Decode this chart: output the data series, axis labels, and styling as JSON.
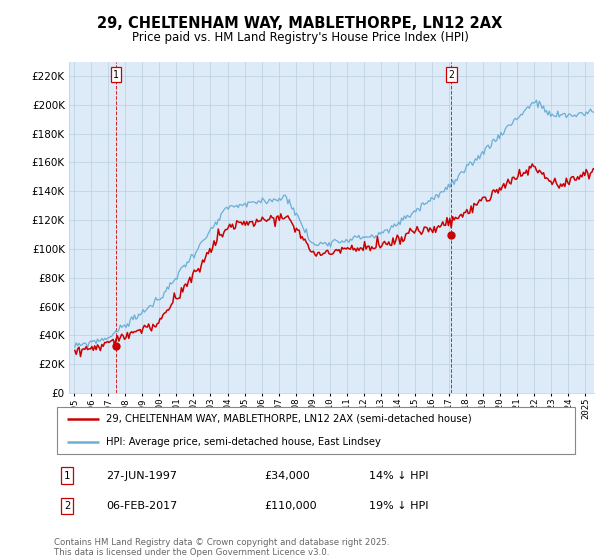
{
  "title": "29, CHELTENHAM WAY, MABLETHORPE, LN12 2AX",
  "subtitle": "Price paid vs. HM Land Registry's House Price Index (HPI)",
  "legend_entry1": "29, CHELTENHAM WAY, MABLETHORPE, LN12 2AX (semi-detached house)",
  "legend_entry2": "HPI: Average price, semi-detached house, East Lindsey",
  "marker1_date": "27-JUN-1997",
  "marker1_price": "£34,000",
  "marker1_hpi": "14% ↓ HPI",
  "marker2_date": "06-FEB-2017",
  "marker2_price": "£110,000",
  "marker2_hpi": "19% ↓ HPI",
  "footer": "Contains HM Land Registry data © Crown copyright and database right 2025.\nThis data is licensed under the Open Government Licence v3.0.",
  "hpi_color": "#6baed6",
  "price_color": "#cc0000",
  "marker_color": "#cc0000",
  "bg_color": "#ddeaf7",
  "grid_color": "#b8cfe0",
  "ylim": [
    0,
    230000
  ],
  "yticks": [
    0,
    20000,
    40000,
    60000,
    80000,
    100000,
    120000,
    140000,
    160000,
    180000,
    200000,
    220000
  ]
}
